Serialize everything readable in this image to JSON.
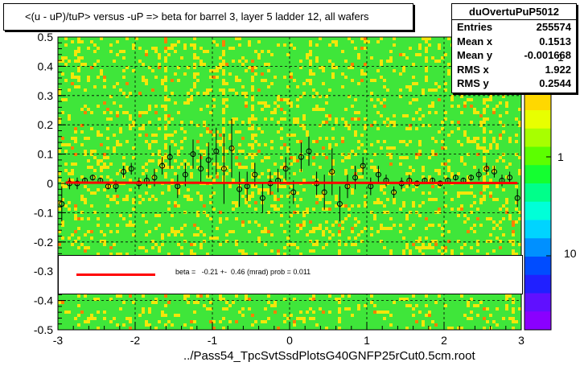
{
  "header": {
    "title": "<(u - uP)/tuP> versus  -uP => beta for barrel 3, layer 5 ladder 12, all wafers"
  },
  "stats": {
    "name": "duOvertuPuP5012",
    "rows": [
      {
        "label": "Entries",
        "value": "255574"
      },
      {
        "label": "Mean x",
        "value": "0.1513"
      },
      {
        "label": "Mean y",
        "value": "-0.001668"
      },
      {
        "label": "RMS x",
        "value": "1.922"
      },
      {
        "label": "RMS y",
        "value": "0.2544"
      }
    ]
  },
  "legend": {
    "fit_text": "beta =   -0.21 +-  0.46 (mrad) prob = 0.011"
  },
  "colorbar": {
    "tick_labels": [
      "1",
      "10"
    ]
  },
  "colors": {
    "fit_line": "#ff0000",
    "heatmap_green": "#3fe63a",
    "heatmap_yellow": "#f4e60a",
    "heatmap_orange": "#ff7f00",
    "grid": "#000000"
  },
  "chart_data": {
    "type": "scatter",
    "title": "<(u - uP)/tuP> versus  -uP => beta for barrel 3, layer 5 ladder 12, all wafers",
    "xlabel": "../Pass54_TpcSvtSsdPlotsG40GNFP25rCut0.5cm.root",
    "ylabel": "",
    "xlim": [
      -3,
      3
    ],
    "ylim": [
      -0.5,
      0.5
    ],
    "x_ticks": [
      "-3",
      "-2",
      "-1",
      "0",
      "1",
      "2",
      "3"
    ],
    "y_ticks": [
      "-0.5",
      "-0.4",
      "-0.3",
      "-0.2",
      "-0.1",
      "0",
      "0.1",
      "0.2",
      "0.3",
      "0.4",
      "0.5"
    ],
    "grid": true,
    "background": "heatmap (colz)",
    "fit": {
      "slope": -0.00021,
      "intercept": 0.002
    },
    "x": [
      -2.95,
      -2.85,
      -2.75,
      -2.65,
      -2.55,
      -2.45,
      -2.35,
      -2.25,
      -2.15,
      -2.05,
      -1.95,
      -1.85,
      -1.75,
      -1.65,
      -1.55,
      -1.45,
      -1.35,
      -1.25,
      -1.15,
      -1.05,
      -0.95,
      -0.85,
      -0.75,
      -0.65,
      -0.55,
      -0.45,
      -0.35,
      -0.25,
      -0.15,
      -0.05,
      0.05,
      0.15,
      0.25,
      0.35,
      0.45,
      0.55,
      0.65,
      0.75,
      0.85,
      0.95,
      1.05,
      1.15,
      1.25,
      1.35,
      1.45,
      1.55,
      1.65,
      1.75,
      1.85,
      1.95,
      2.05,
      2.15,
      2.25,
      2.35,
      2.45,
      2.55,
      2.65,
      2.75,
      2.85,
      2.95
    ],
    "y": [
      -0.07,
      0.0,
      0.0,
      0.01,
      0.02,
      0.01,
      -0.01,
      -0.01,
      0.04,
      0.05,
      0.0,
      0.01,
      0.02,
      0.06,
      0.09,
      -0.01,
      0.03,
      0.1,
      0.05,
      0.08,
      0.11,
      0.05,
      0.12,
      -0.02,
      -0.01,
      0.03,
      -0.05,
      0.0,
      0.01,
      0.05,
      -0.03,
      0.09,
      0.11,
      0.0,
      -0.03,
      0.04,
      -0.07,
      -0.01,
      0.02,
      0.06,
      -0.01,
      0.03,
      0.01,
      -0.03,
      0.0,
      0.01,
      0.0,
      0.01,
      0.01,
      0.0,
      0.01,
      0.02,
      0.01,
      0.02,
      0.03,
      0.05,
      0.04,
      0.01,
      0.02,
      -0.05
    ],
    "yerr": [
      0.06,
      0.02,
      0.02,
      0.01,
      0.01,
      0.01,
      0.01,
      0.02,
      0.02,
      0.02,
      0.02,
      0.02,
      0.03,
      0.03,
      0.04,
      0.04,
      0.04,
      0.05,
      0.05,
      0.06,
      0.08,
      0.12,
      0.1,
      0.06,
      0.05,
      0.04,
      0.05,
      0.04,
      0.04,
      0.04,
      0.04,
      0.05,
      0.05,
      0.04,
      0.06,
      0.08,
      0.06,
      0.04,
      0.04,
      0.03,
      0.03,
      0.03,
      0.02,
      0.02,
      0.02,
      0.02,
      0.01,
      0.01,
      0.01,
      0.01,
      0.01,
      0.01,
      0.01,
      0.01,
      0.02,
      0.02,
      0.02,
      0.02,
      0.02,
      0.03
    ]
  }
}
